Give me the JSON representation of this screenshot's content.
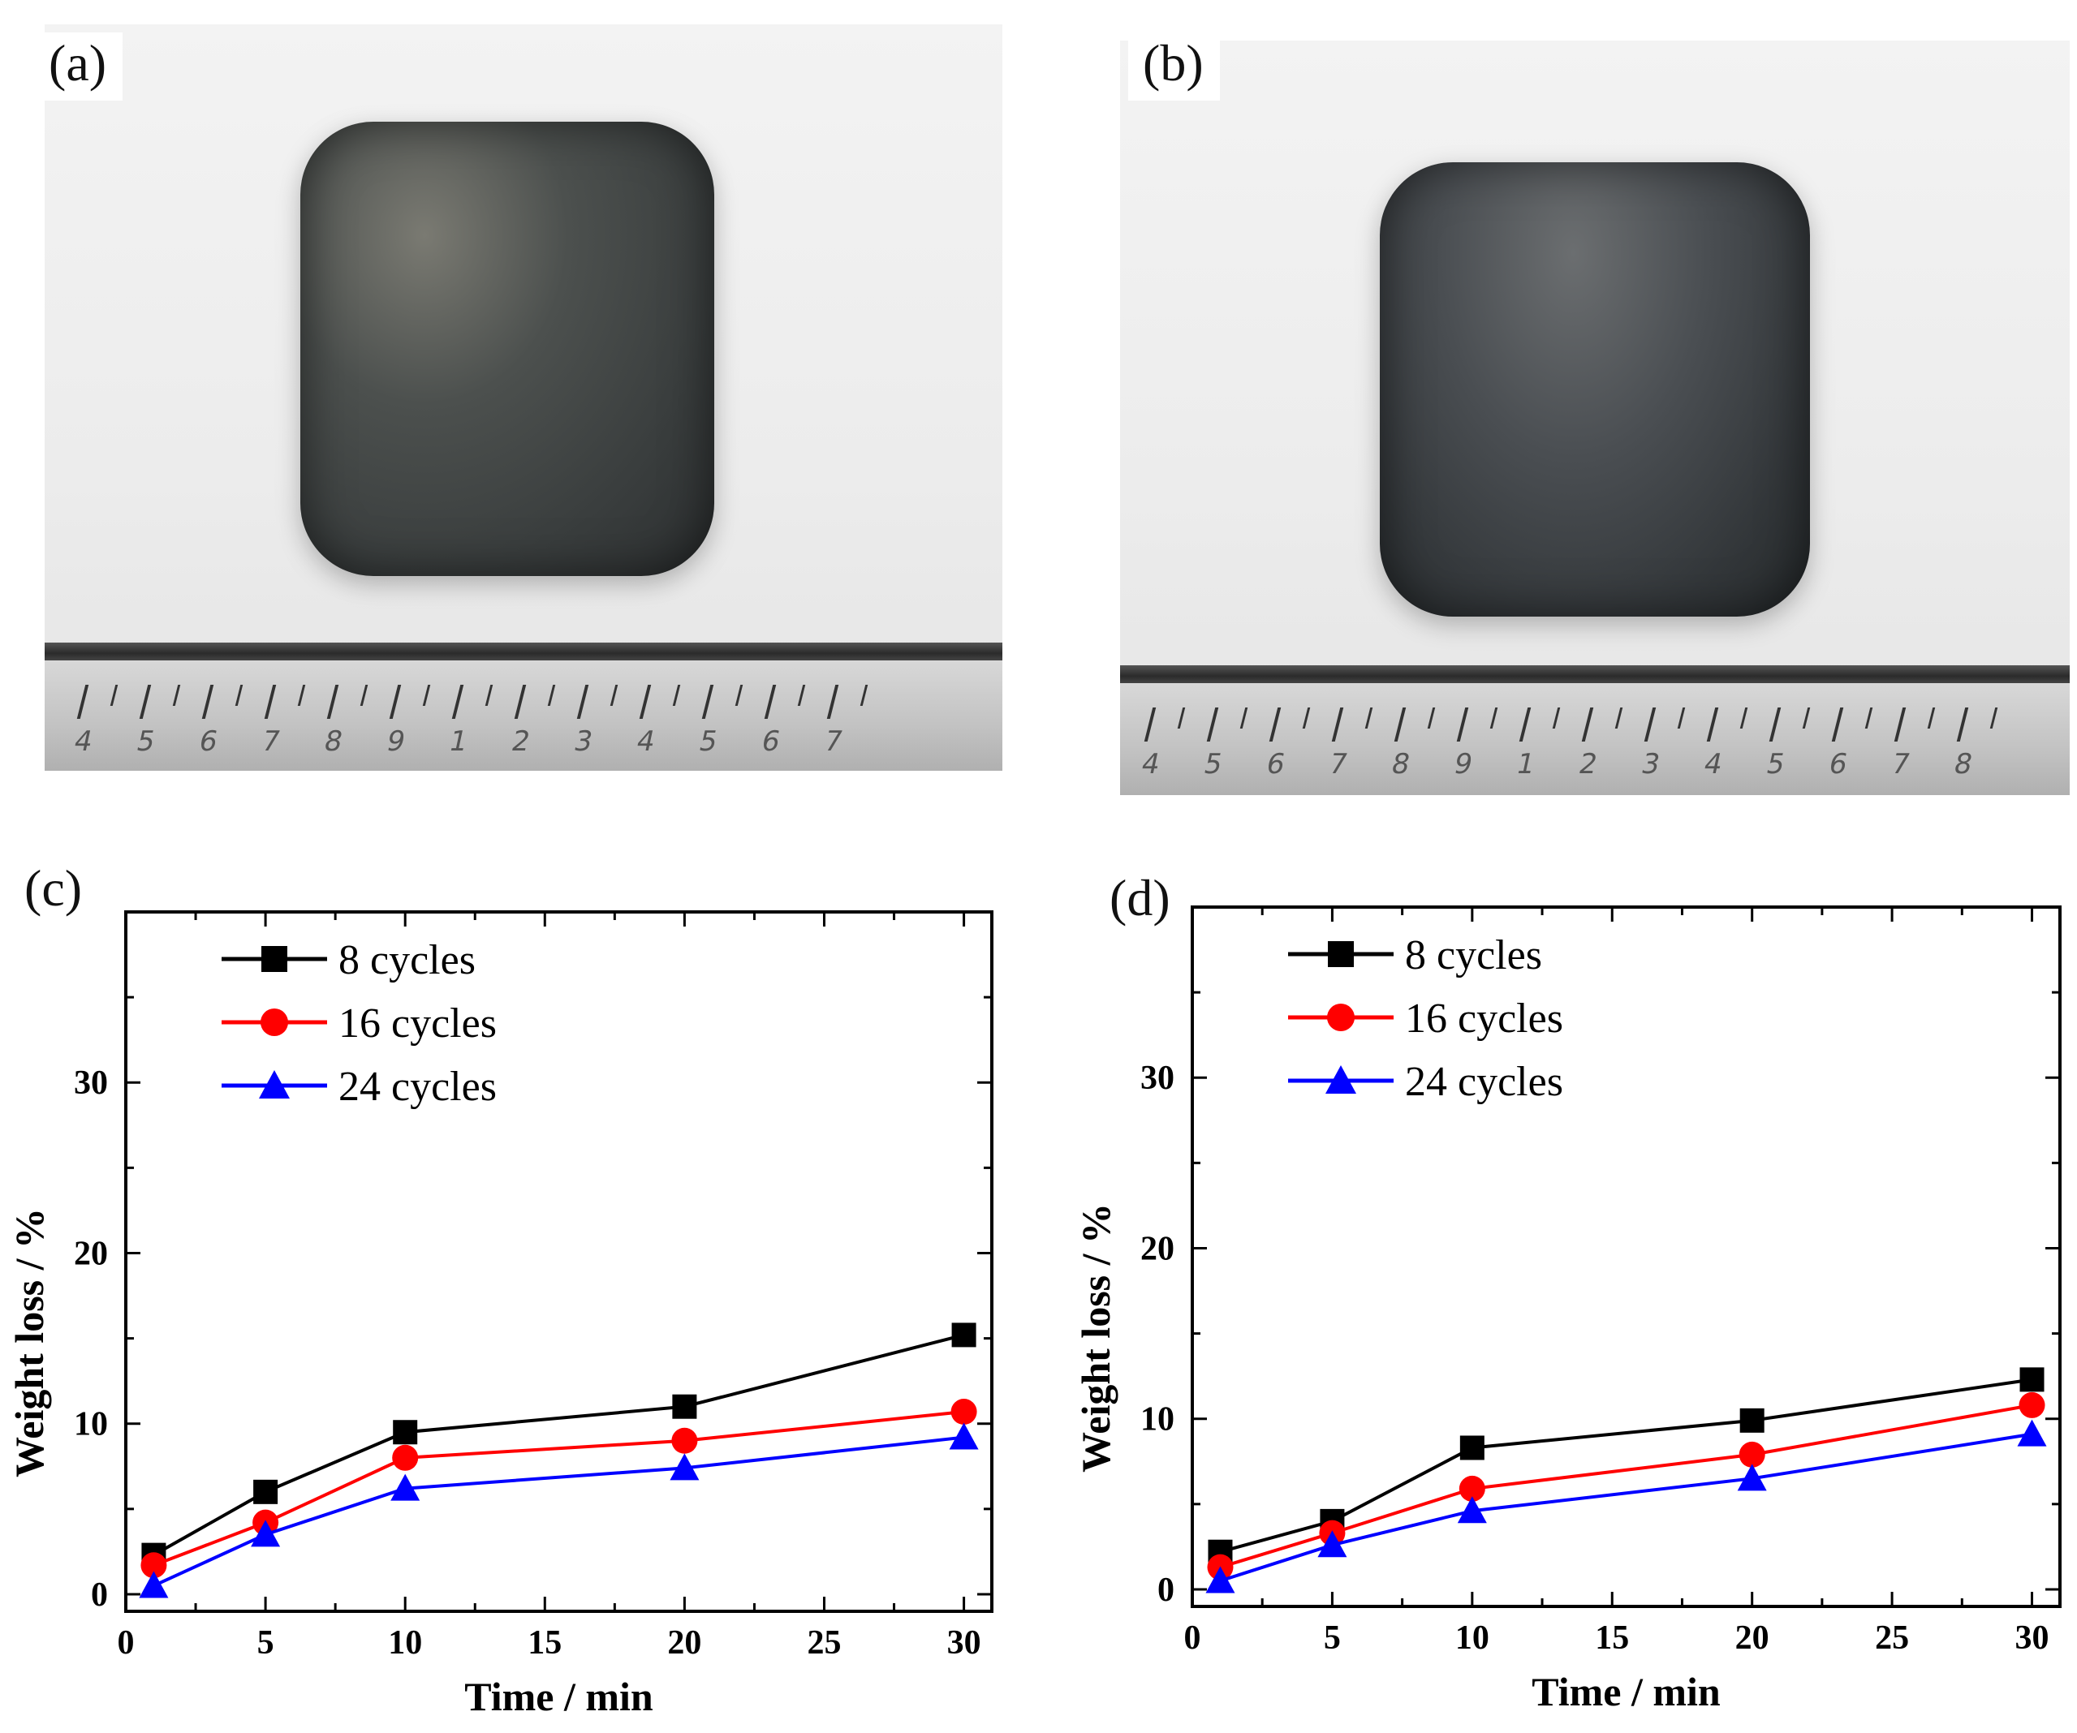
{
  "panels": {
    "a": {
      "label": "(a)"
    },
    "b": {
      "label": "(b)"
    },
    "c": {
      "label": "(c)"
    },
    "d": {
      "label": "(d)"
    }
  },
  "ruler": {
    "numbers_a": [
      "4",
      "5",
      "6",
      "7",
      "8",
      "9",
      "1",
      "2",
      "3",
      "4",
      "5",
      "6",
      "7"
    ],
    "numbers_b": [
      "4",
      "5",
      "6",
      "7",
      "8",
      "9",
      "1",
      "2",
      "3",
      "4",
      "5",
      "6",
      "7",
      "8"
    ]
  },
  "colors": {
    "series_8": "#000000",
    "series_16": "#ff0000",
    "series_24": "#0000ff"
  },
  "chart_data": [
    {
      "type": "line",
      "panel_label": "(c)",
      "xlabel": "Time / min",
      "ylabel": "Weight loss / %",
      "xlim": [
        0,
        31
      ],
      "ylim": [
        -1,
        40
      ],
      "xticks": [
        "0",
        "5",
        "10",
        "15",
        "20",
        "25",
        "30"
      ],
      "yticks": [
        "0",
        "10",
        "20",
        "30"
      ],
      "legend_position": "top-left",
      "x": [
        1,
        5,
        10,
        20,
        30
      ],
      "series": [
        {
          "name": "8 cycles",
          "marker": "square",
          "color": "#000000",
          "values": [
            2.3,
            6.0,
            9.5,
            11.0,
            15.2
          ]
        },
        {
          "name": "16 cycles",
          "marker": "circle",
          "color": "#ff0000",
          "values": [
            1.7,
            4.2,
            8.0,
            9.0,
            10.7
          ]
        },
        {
          "name": "24 cycles",
          "marker": "triangle",
          "color": "#0000ff",
          "values": [
            0.5,
            3.5,
            6.2,
            7.4,
            9.2
          ]
        }
      ]
    },
    {
      "type": "line",
      "panel_label": "(d)",
      "xlabel": "Time / min",
      "ylabel": "Weight loss / %",
      "xlim": [
        0,
        31
      ],
      "ylim": [
        -1,
        40
      ],
      "xticks": [
        "0",
        "5",
        "10",
        "15",
        "20",
        "25",
        "30"
      ],
      "yticks": [
        "0",
        "10",
        "20",
        "30"
      ],
      "legend_position": "top-left",
      "x": [
        1,
        5,
        10,
        20,
        30
      ],
      "series": [
        {
          "name": "8 cycles",
          "marker": "square",
          "color": "#000000",
          "values": [
            2.2,
            4.0,
            8.3,
            9.9,
            12.3
          ]
        },
        {
          "name": "16 cycles",
          "marker": "circle",
          "color": "#ff0000",
          "values": [
            1.3,
            3.3,
            5.9,
            7.9,
            10.8
          ]
        },
        {
          "name": "24 cycles",
          "marker": "triangle",
          "color": "#0000ff",
          "values": [
            0.5,
            2.6,
            4.6,
            6.5,
            9.1
          ]
        }
      ]
    }
  ]
}
